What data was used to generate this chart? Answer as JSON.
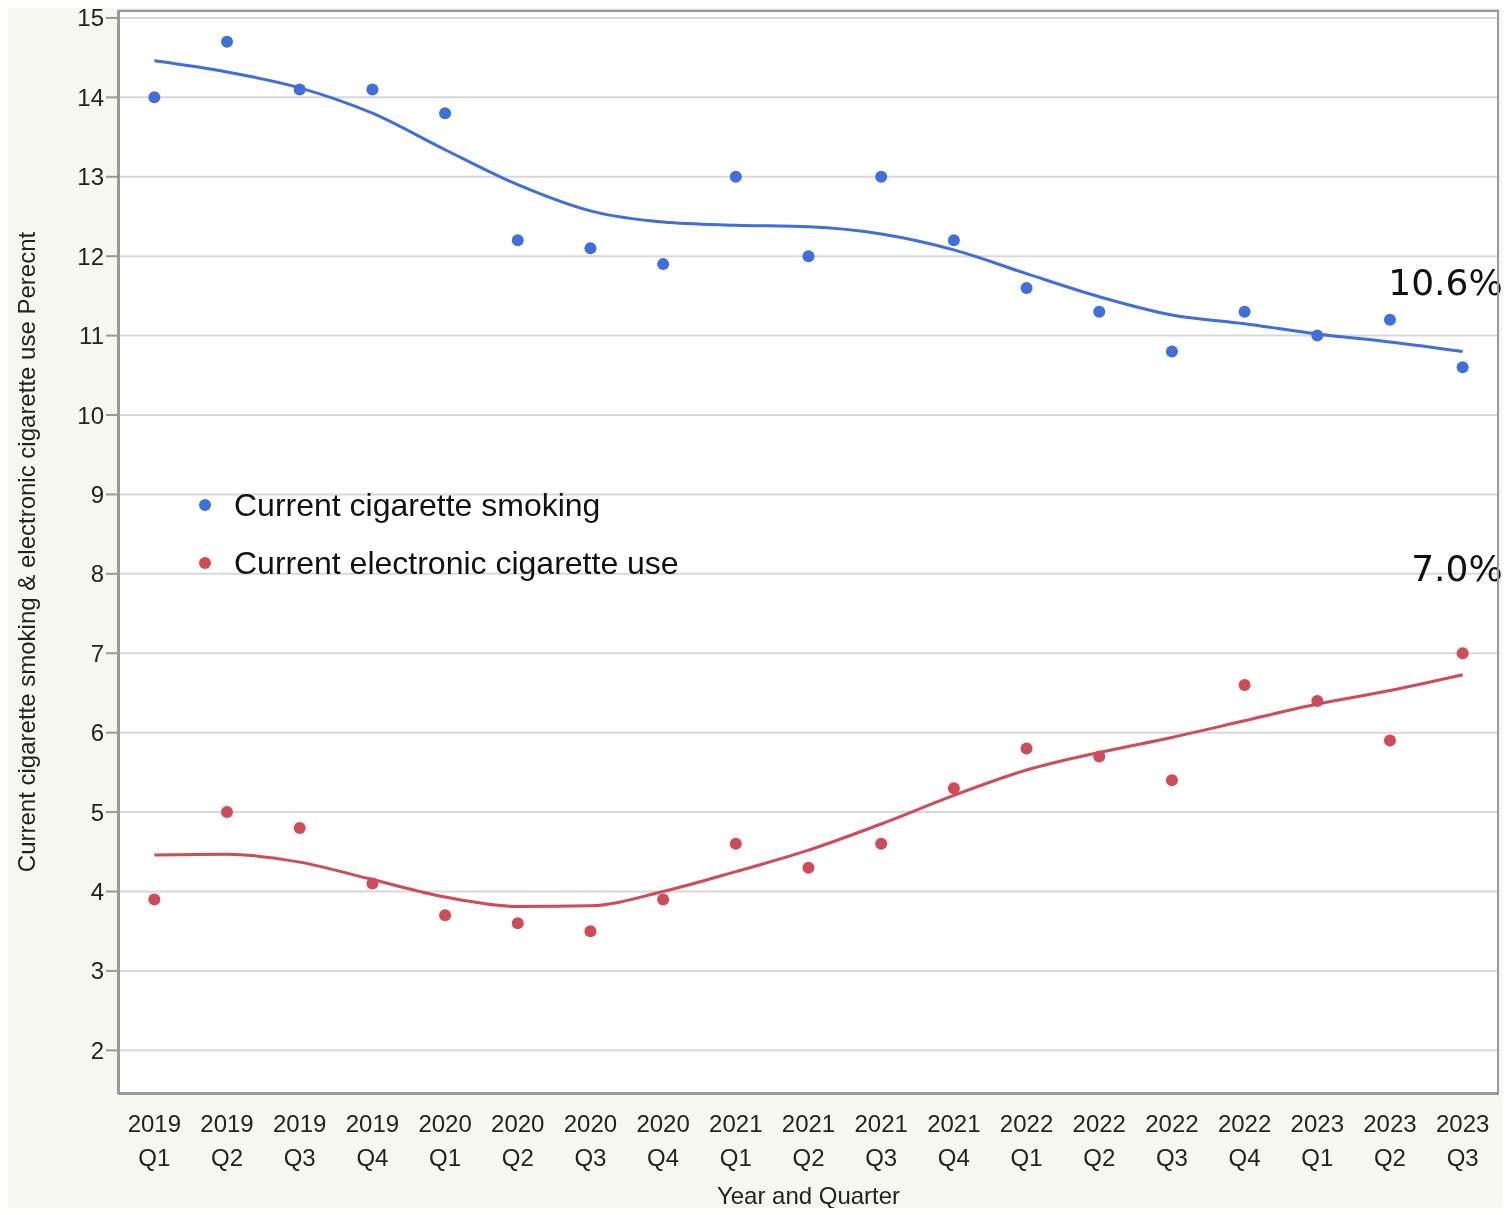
{
  "chart_data": {
    "type": "scatter",
    "xlabel": "Year and Quarter",
    "ylabel": "Current cigarette smoking & electronic cigarette use Perecnt",
    "categories": [
      "2019 Q1",
      "2019 Q2",
      "2019 Q3",
      "2019 Q4",
      "2020 Q1",
      "2020 Q2",
      "2020 Q3",
      "2020 Q4",
      "2021 Q1",
      "2021 Q2",
      "2021 Q3",
      "2021 Q4",
      "2022 Q1",
      "2022 Q2",
      "2022 Q3",
      "2022 Q4",
      "2023 Q1",
      "2023 Q2",
      "2023 Q3"
    ],
    "series": [
      {
        "name": "Current cigarette smoking",
        "marker": "circle",
        "color": "#3f6fdc",
        "values": [
          14.0,
          14.7,
          14.1,
          14.1,
          13.8,
          12.2,
          12.1,
          11.9,
          13.0,
          12.0,
          13.0,
          12.2,
          11.6,
          11.3,
          10.8,
          11.3,
          11.0,
          11.2,
          10.6
        ]
      },
      {
        "name": "Current electronic cigarette use",
        "marker": "circle",
        "color": "#d14a58",
        "values": [
          3.9,
          5.0,
          4.8,
          4.1,
          3.7,
          3.6,
          3.5,
          3.9,
          4.6,
          4.3,
          4.6,
          5.3,
          5.8,
          5.7,
          5.4,
          6.6,
          6.4,
          5.9,
          7.0
        ]
      },
      {
        "type": "line",
        "marker": "none",
        "line_style": "solid",
        "color": "#3f6fdc",
        "values": [
          14.46,
          14.32,
          14.12,
          13.8,
          13.34,
          12.9,
          12.57,
          12.43,
          12.39,
          12.37,
          12.28,
          12.08,
          11.78,
          11.49,
          11.26,
          11.15,
          11.02,
          10.92,
          10.8
        ]
      },
      {
        "type": "line",
        "marker": "none",
        "line_style": "solid",
        "color": "#d14a58",
        "values": [
          4.46,
          4.47,
          4.37,
          4.15,
          3.93,
          3.81,
          3.82,
          4.0,
          4.25,
          4.52,
          4.85,
          5.21,
          5.53,
          5.75,
          5.94,
          6.15,
          6.36,
          6.53,
          6.73
        ]
      }
    ],
    "annotations": [
      {
        "text": "10.6%",
        "x": "2023 Q3",
        "y": 10.6
      },
      {
        "text": "7.0%",
        "x": "2023 Q3",
        "y": 7.0
      }
    ],
    "ylim": [
      1.45,
      15.1
    ],
    "yticks": [
      2,
      3,
      4,
      5,
      6,
      7,
      8,
      9,
      10,
      11,
      12,
      13,
      14,
      15
    ],
    "grid": "y",
    "legend": "left"
  }
}
